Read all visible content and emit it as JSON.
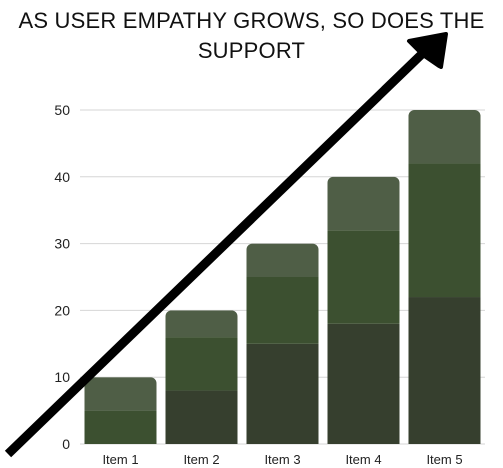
{
  "chart_data": {
    "type": "bar",
    "stacked": true,
    "title": "AS USER EMPATHY GROWS, SO DOES THE SUPPORT",
    "title_lines": [
      "AS USER EMPATHY GROWS, SO DOES THE",
      "SUPPORT"
    ],
    "xlabel": "",
    "ylabel": "",
    "categories": [
      "Item 1",
      "Item 2",
      "Item 3",
      "Item 4",
      "Item 5"
    ],
    "series": [
      {
        "values": [
          0,
          8,
          15,
          18,
          22
        ],
        "color": "#363f2e"
      },
      {
        "values": [
          5,
          8,
          10,
          14,
          20
        ],
        "color": "#3c5030"
      },
      {
        "values": [
          5,
          4,
          5,
          8,
          8
        ],
        "color": "#4f5e46"
      }
    ],
    "ylim": [
      0,
      50
    ],
    "yticks": [
      "0",
      "10",
      "20",
      "30",
      "40",
      "50"
    ],
    "grid": true,
    "legend": "none",
    "annotation": "black upward arrow"
  }
}
